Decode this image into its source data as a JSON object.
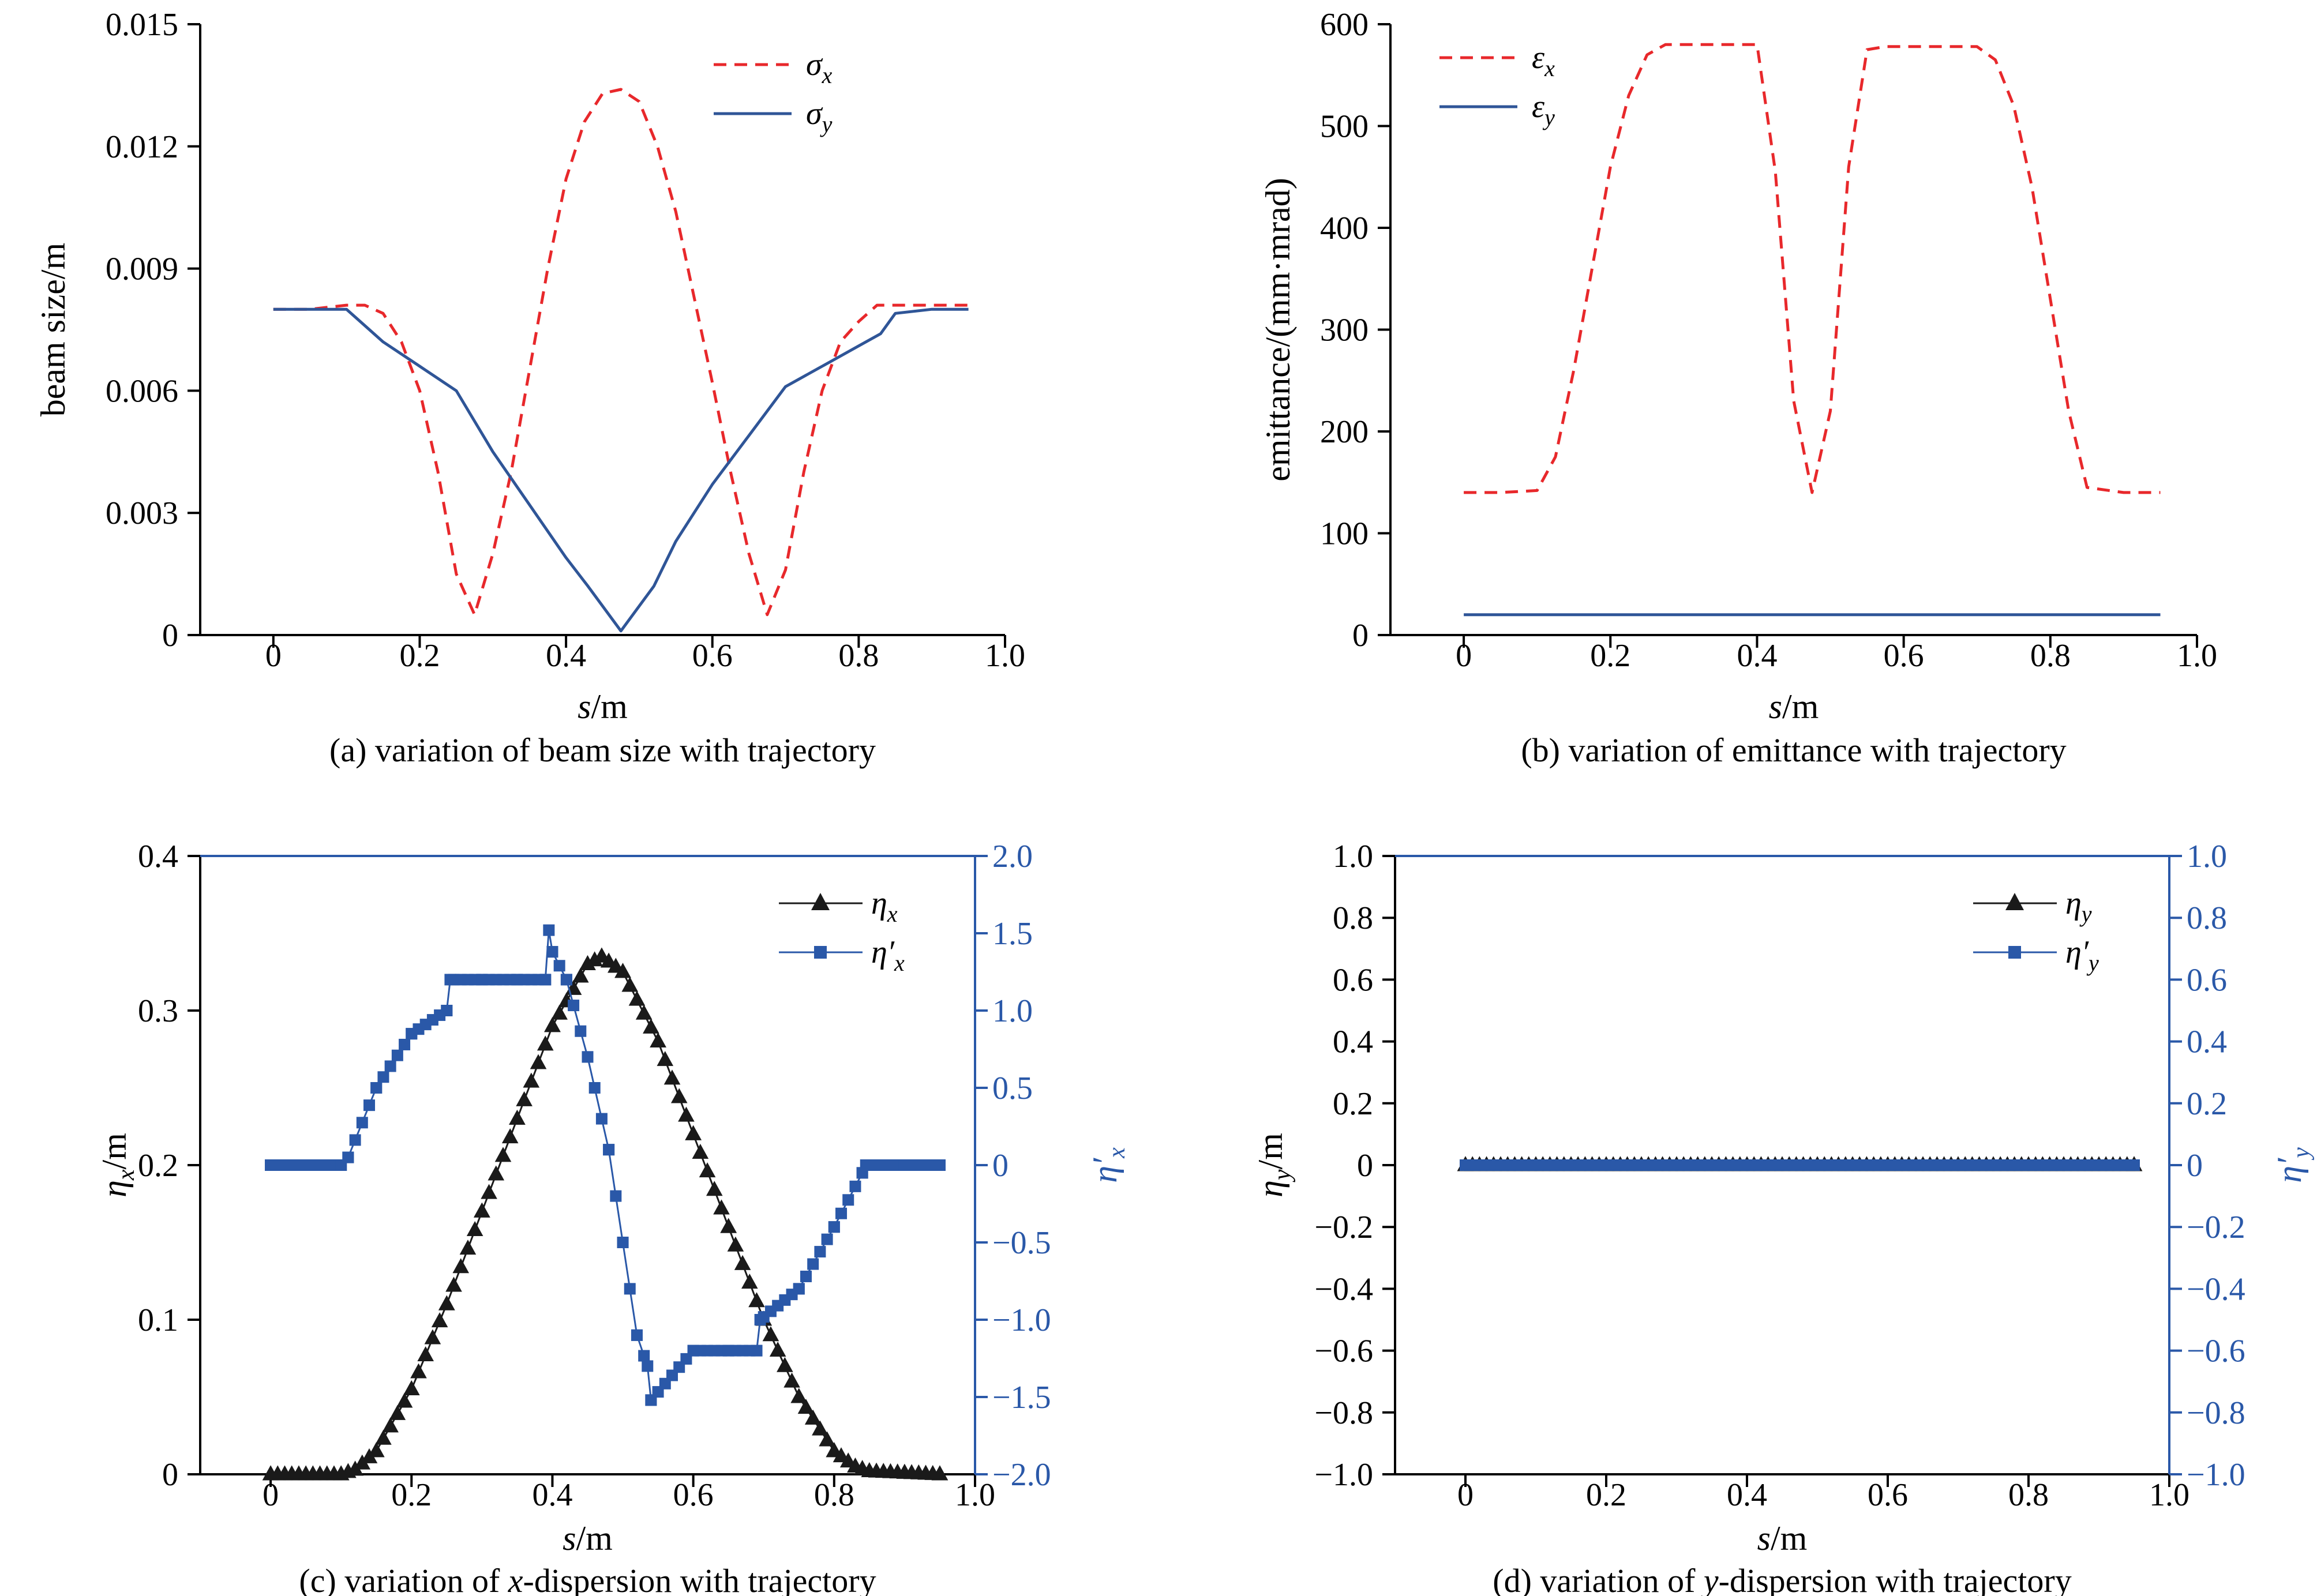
{
  "colors": {
    "axis": "#000000",
    "red": "#e8282b",
    "blue": "#2f5597",
    "right_axis": "#2a58a8",
    "black_series": "#1a1a1a",
    "square_series": "#2a58a8"
  },
  "chart_data": [
    {
      "id": "a",
      "type": "line",
      "caption": "(a) variation of beam size with trajectory",
      "xlabel": {
        "main": "s",
        "suffix": "/m"
      },
      "ylabel": "beam size/m",
      "xlim": [
        -0.1,
        1.0
      ],
      "ylim": [
        0,
        0.015
      ],
      "x_ticks": [
        "0",
        "0.2",
        "0.4",
        "0.6",
        "0.8",
        "1.0"
      ],
      "y_ticks": [
        "0",
        "0.003",
        "0.006",
        "0.009",
        "0.012",
        "0.015"
      ],
      "legend_position": "top-right",
      "series": [
        {
          "name": "σ",
          "sub": "x",
          "style": "dashed",
          "color": "red",
          "x": [
            0,
            0.05,
            0.1,
            0.125,
            0.15,
            0.175,
            0.2,
            0.225,
            0.25,
            0.275,
            0.3,
            0.325,
            0.35,
            0.375,
            0.4,
            0.425,
            0.45,
            0.475,
            0.5,
            0.525,
            0.55,
            0.575,
            0.6,
            0.625,
            0.65,
            0.675,
            0.7,
            0.725,
            0.75,
            0.775,
            0.8,
            0.825,
            0.85,
            0.9,
            0.95
          ],
          "y": [
            0.008,
            0.008,
            0.0081,
            0.0081,
            0.0079,
            0.0072,
            0.006,
            0.004,
            0.0015,
            0.0005,
            0.002,
            0.004,
            0.0065,
            0.009,
            0.0112,
            0.0126,
            0.0133,
            0.0134,
            0.0131,
            0.012,
            0.0104,
            0.0083,
            0.0062,
            0.004,
            0.002,
            0.0005,
            0.0016,
            0.004,
            0.006,
            0.0072,
            0.0077,
            0.0081,
            0.0081,
            0.0081,
            0.0081
          ]
        },
        {
          "name": "σ",
          "sub": "y",
          "style": "solid",
          "color": "blue",
          "x": [
            0,
            0.1,
            0.15,
            0.2,
            0.25,
            0.3,
            0.35,
            0.4,
            0.43,
            0.475,
            0.52,
            0.55,
            0.6,
            0.65,
            0.7,
            0.75,
            0.8,
            0.83,
            0.85,
            0.9,
            0.95
          ],
          "y": [
            0.008,
            0.008,
            0.0072,
            0.0066,
            0.006,
            0.0045,
            0.0032,
            0.0019,
            0.0012,
            0.0001,
            0.0012,
            0.0023,
            0.0037,
            0.0049,
            0.0061,
            0.0066,
            0.0071,
            0.0074,
            0.0079,
            0.008,
            0.008
          ]
        }
      ]
    },
    {
      "id": "b",
      "type": "line",
      "caption": "(b) variation of emittance with trajectory",
      "xlabel": {
        "main": "s",
        "suffix": "/m"
      },
      "ylabel": "emittance/(mm·mrad)",
      "xlim": [
        -0.1,
        1.0
      ],
      "ylim": [
        0,
        600
      ],
      "x_ticks": [
        "0",
        "0.2",
        "0.4",
        "0.6",
        "0.8",
        "1.0"
      ],
      "y_ticks": [
        "0",
        "100",
        "200",
        "300",
        "400",
        "500",
        "600"
      ],
      "legend_position": "top-left",
      "series": [
        {
          "name": "ε",
          "sub": "x",
          "style": "dashed",
          "color": "red",
          "x": [
            0,
            0.05,
            0.1,
            0.125,
            0.15,
            0.175,
            0.2,
            0.225,
            0.25,
            0.275,
            0.3,
            0.35,
            0.4,
            0.425,
            0.45,
            0.475,
            0.5,
            0.525,
            0.55,
            0.575,
            0.6,
            0.65,
            0.7,
            0.725,
            0.75,
            0.775,
            0.8,
            0.825,
            0.85,
            0.9,
            0.95
          ],
          "y": [
            140,
            140,
            142,
            175,
            260,
            360,
            460,
            530,
            570,
            580,
            580,
            580,
            580,
            455,
            230,
            140,
            220,
            460,
            575,
            578,
            578,
            578,
            578,
            565,
            520,
            440,
            330,
            220,
            145,
            140,
            140
          ]
        },
        {
          "name": "ε",
          "sub": "y",
          "style": "solid",
          "color": "blue",
          "x": [
            0,
            0.95
          ],
          "y": [
            20,
            20
          ]
        }
      ]
    },
    {
      "id": "c",
      "type": "scatter",
      "caption": "(c) variation of x-dispersion with trajectory",
      "caption_parts": [
        "(c) variation of ",
        "x",
        "-dispersion with trajectory"
      ],
      "xlabel": {
        "main": "s",
        "suffix": "/m"
      },
      "ylabel": {
        "main": "η",
        "sub": "x",
        "suffix": "/m"
      },
      "y2label": {
        "main": "η′",
        "sub": "x"
      },
      "xlim": [
        -0.1,
        1.0
      ],
      "ylim": [
        0,
        0.4
      ],
      "y2lim": [
        -2.0,
        2.0
      ],
      "x_ticks": [
        "0",
        "0.2",
        "0.4",
        "0.6",
        "0.8",
        "1.0"
      ],
      "y_ticks": [
        "0",
        "0.1",
        "0.2",
        "0.3",
        "0.4"
      ],
      "y2_ticks": [
        "−2.0",
        "−1.5",
        "−1.0",
        "−0.5",
        "0",
        "0.5",
        "1.0",
        "1.5",
        "2.0"
      ],
      "legend_position": "top-right",
      "series": [
        {
          "name": "η",
          "sub": "x",
          "marker": "triangle",
          "color": "black_series",
          "axis": "left",
          "x": [
            0,
            0.1,
            0.12,
            0.15,
            0.2,
            0.25,
            0.3,
            0.35,
            0.4,
            0.45,
            0.47,
            0.5,
            0.55,
            0.6,
            0.65,
            0.7,
            0.75,
            0.8,
            0.83,
            0.85,
            0.9,
            0.95
          ],
          "y": [
            0,
            0,
            0.003,
            0.015,
            0.055,
            0.11,
            0.17,
            0.23,
            0.29,
            0.33,
            0.335,
            0.325,
            0.28,
            0.22,
            0.16,
            0.1,
            0.05,
            0.015,
            0.005,
            0.002,
            0.001,
            0
          ]
        },
        {
          "name": "η′",
          "sub": "x",
          "marker": "square",
          "color": "square_series",
          "axis": "right",
          "x": [
            0,
            0.1,
            0.11,
            0.15,
            0.2,
            0.25,
            0.255,
            0.3,
            0.35,
            0.39,
            0.395,
            0.4,
            0.42,
            0.45,
            0.48,
            0.5,
            0.52,
            0.535,
            0.54,
            0.6,
            0.65,
            0.69,
            0.695,
            0.75,
            0.8,
            0.84,
            0.845,
            0.9,
            0.95
          ],
          "y": [
            0,
            0,
            0.05,
            0.5,
            0.85,
            1.0,
            1.2,
            1.2,
            1.2,
            1.2,
            1.52,
            1.38,
            1.2,
            0.7,
            0.1,
            -0.5,
            -1.1,
            -1.3,
            -1.52,
            -1.2,
            -1.2,
            -1.2,
            -1.0,
            -0.8,
            -0.4,
            -0.05,
            0,
            0,
            0
          ]
        }
      ]
    },
    {
      "id": "d",
      "type": "scatter",
      "caption": "(d) variation of y-dispersion with trajectory",
      "caption_parts": [
        "(d) variation of ",
        "y",
        "-dispersion with trajectory"
      ],
      "xlabel": {
        "main": "s",
        "suffix": "/m"
      },
      "ylabel": {
        "main": "η",
        "sub": "y",
        "suffix": "/m"
      },
      "y2label": {
        "main": "η′",
        "sub": "y"
      },
      "xlim": [
        -0.1,
        1.0
      ],
      "ylim": [
        -1.0,
        1.0
      ],
      "y2lim": [
        -1.0,
        1.0
      ],
      "x_ticks": [
        "0",
        "0.2",
        "0.4",
        "0.6",
        "0.8",
        "1.0"
      ],
      "y_ticks": [
        "−1.0",
        "−0.8",
        "−0.6",
        "−0.4",
        "−0.2",
        "0",
        "0.2",
        "0.4",
        "0.6",
        "0.8",
        "1.0"
      ],
      "y2_ticks": [
        "−1.0",
        "−0.8",
        "−0.6",
        "−0.4",
        "−0.2",
        "0",
        "0.2",
        "0.4",
        "0.6",
        "0.8",
        "1.0"
      ],
      "legend_position": "top-right",
      "series": [
        {
          "name": "η",
          "sub": "y",
          "marker": "triangle",
          "color": "black_series",
          "axis": "left",
          "x": [
            0,
            0.95
          ],
          "y": [
            0,
            0
          ]
        },
        {
          "name": "η′",
          "sub": "y",
          "marker": "square",
          "color": "square_series",
          "axis": "right",
          "x": [
            0,
            0.95
          ],
          "y": [
            0,
            0
          ]
        }
      ]
    }
  ]
}
